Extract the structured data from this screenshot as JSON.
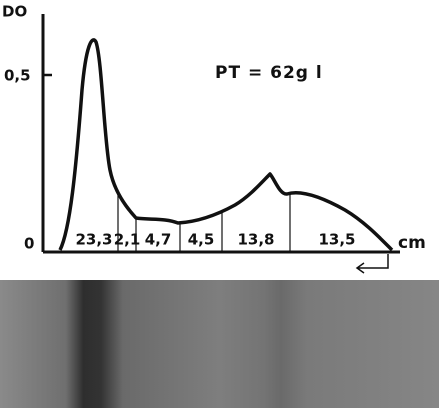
{
  "y_axis": {
    "label": "DO",
    "ticks": [
      "0,5",
      "0"
    ]
  },
  "x_axis": {
    "label": "cm"
  },
  "annotation": "PT = 62g l",
  "fractions": [
    "23,3",
    "2,1",
    "4,7",
    "4,5",
    "13,8",
    "13,5"
  ]
}
